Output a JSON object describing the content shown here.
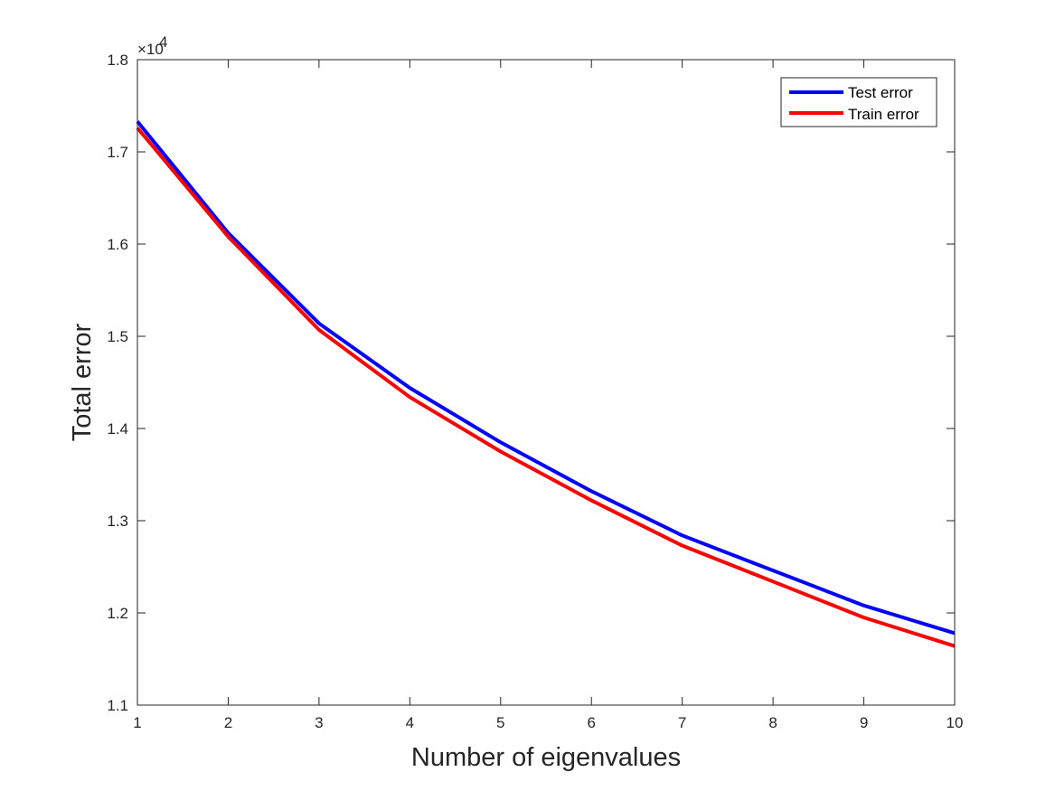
{
  "chart_data": {
    "type": "line",
    "xlabel": "Number of eigenvalues",
    "ylabel": "Total error",
    "x": [
      1,
      2,
      3,
      4,
      5,
      6,
      7,
      8,
      9,
      10
    ],
    "xlim": [
      1,
      10
    ],
    "ylim": [
      1.1,
      1.8
    ],
    "x_ticks": [
      "1",
      "2",
      "3",
      "4",
      "5",
      "6",
      "7",
      "8",
      "9",
      "10"
    ],
    "y_ticks": [
      "1.1",
      "1.2",
      "1.3",
      "1.4",
      "1.5",
      "1.6",
      "1.7",
      "1.8"
    ],
    "y_exponent_base": "×10",
    "y_exponent_power": "4",
    "grid": false,
    "legend_position": "top-right",
    "series": [
      {
        "name": "Test error",
        "color": "#0000ff",
        "values": [
          1.733,
          1.612,
          1.514,
          1.444,
          1.385,
          1.332,
          1.284,
          1.246,
          1.208,
          1.178
        ]
      },
      {
        "name": "Train error",
        "color": "#ff0000",
        "values": [
          1.726,
          1.608,
          1.507,
          1.434,
          1.375,
          1.322,
          1.273,
          1.234,
          1.195,
          1.164
        ]
      }
    ]
  }
}
